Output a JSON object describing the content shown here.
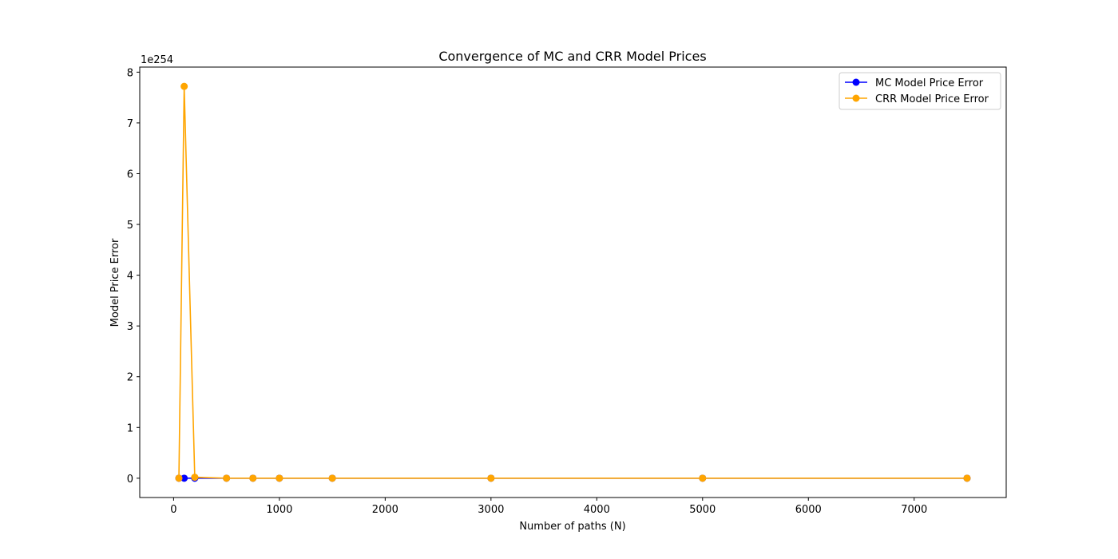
{
  "chart_data": {
    "type": "line",
    "title": "Convergence of MC and CRR Model Prices",
    "xlabel": "Number of paths (N)",
    "ylabel": "Model Price Error",
    "y_offset_label": "1e254",
    "xlim": [
      -320,
      7870
    ],
    "ylim": [
      -0.38,
      8.1
    ],
    "x_ticks": [
      0,
      1000,
      2000,
      3000,
      4000,
      5000,
      6000,
      7000
    ],
    "y_ticks": [
      0,
      1,
      2,
      3,
      4,
      5,
      6,
      7,
      8
    ],
    "x_tick_labels": [
      "0",
      "1000",
      "2000",
      "3000",
      "4000",
      "5000",
      "6000",
      "7000"
    ],
    "y_tick_labels": [
      "0",
      "1",
      "2",
      "3",
      "4",
      "5",
      "6",
      "7",
      "8"
    ],
    "legend_position": "top-right",
    "grid": false,
    "series": [
      {
        "name": "MC Model Price Error",
        "color": "#0000ff",
        "marker": "circle",
        "x": [
          50,
          100,
          200,
          500,
          750,
          1000,
          1500,
          3000,
          5000,
          7500
        ],
        "y": [
          0,
          0,
          0,
          0,
          0,
          0,
          0,
          0,
          0,
          0
        ]
      },
      {
        "name": "CRR Model Price Error",
        "color": "#ffa500",
        "marker": "circle",
        "x": [
          50,
          100,
          200,
          500,
          750,
          1000,
          1500,
          3000,
          5000,
          7500
        ],
        "y": [
          0,
          7.72,
          0.02,
          0,
          0,
          0,
          0,
          0,
          0,
          0
        ]
      }
    ]
  }
}
